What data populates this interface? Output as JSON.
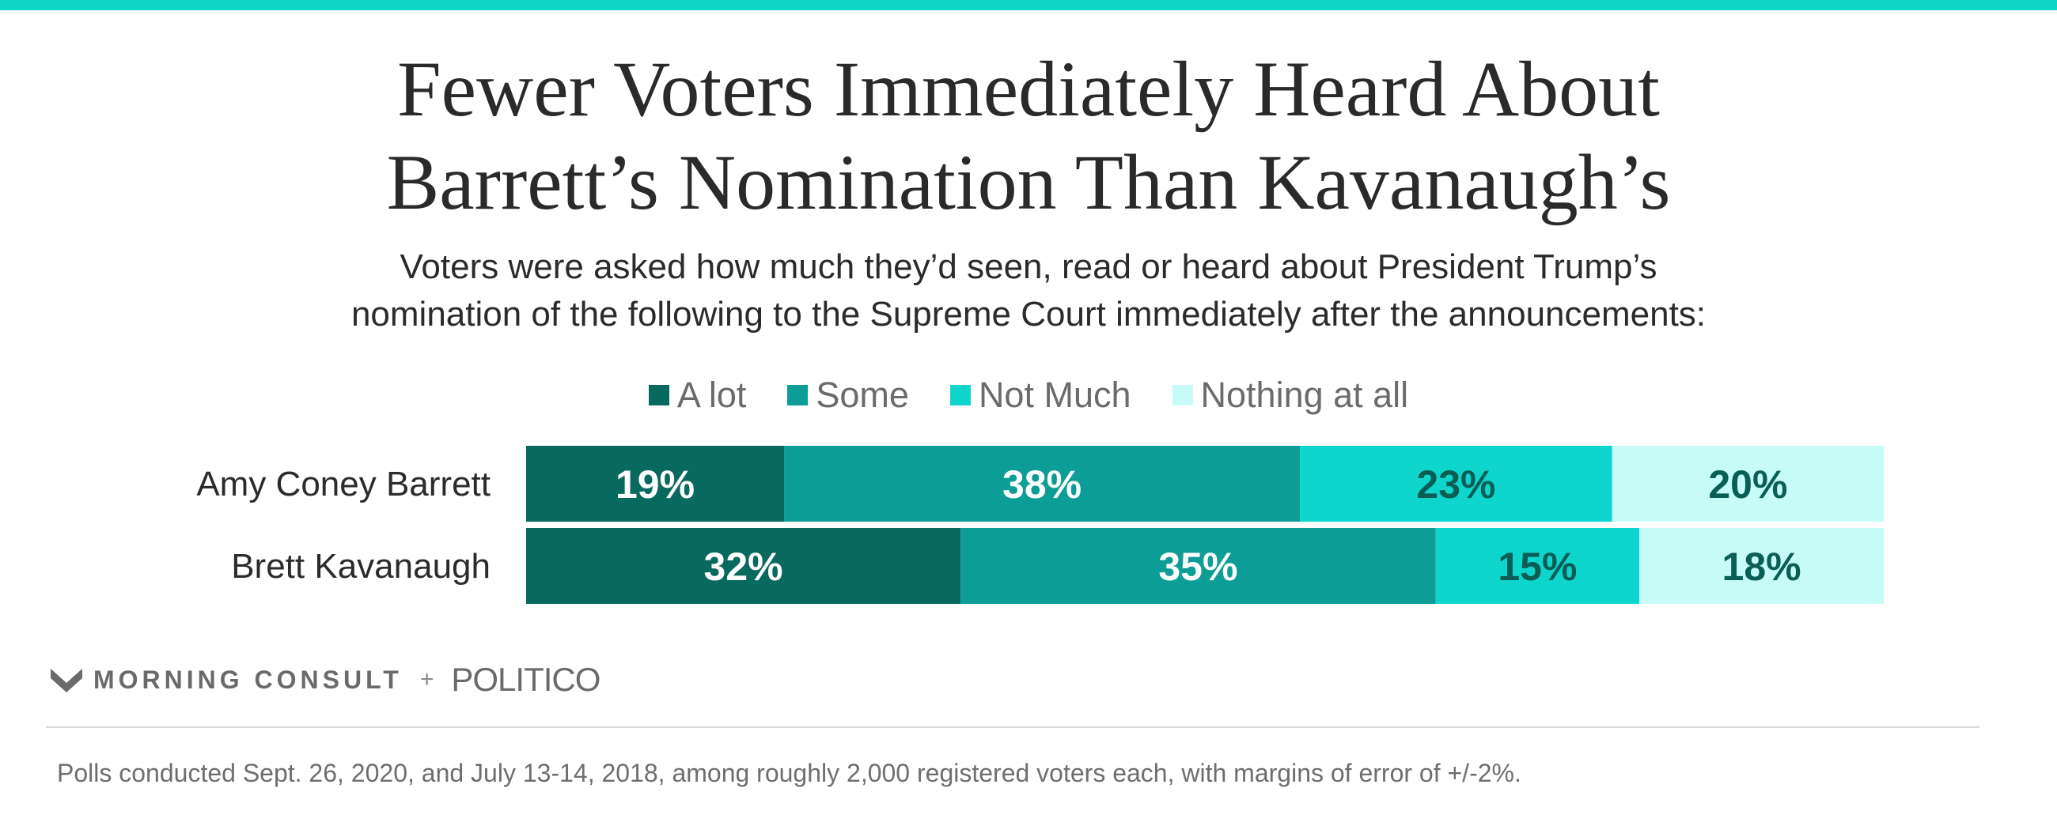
{
  "colors": {
    "top_bar": "#0fd6c8",
    "a_lot": "#08695f",
    "some": "#0c9e96",
    "not_much": "#0fd6cc",
    "nothing_at_all": "#c6fbf8",
    "label_light": "#ffffff",
    "label_dark": "#0a5e56"
  },
  "header": {
    "title_line1": "Fewer Voters Immediately Heard About",
    "title_line2": "Barrett’s Nomination Than Kavanaugh’s",
    "subtitle_line1": "Voters were asked how much they’d seen, read or heard about President Trump’s",
    "subtitle_line2": "nomination of the following to the Supreme Court immediately after the announcements:"
  },
  "legend": [
    {
      "label": "A lot",
      "color": "#08695f"
    },
    {
      "label": "Some",
      "color": "#0c9e96"
    },
    {
      "label": "Not Much",
      "color": "#0fd6cc"
    },
    {
      "label": "Nothing at all",
      "color": "#c6fbf8"
    }
  ],
  "chart_data": {
    "type": "bar",
    "orientation": "horizontal",
    "stacked": true,
    "categories": [
      "Amy Coney Barrett",
      "Brett Kavanaugh"
    ],
    "series": [
      {
        "name": "A lot",
        "values": [
          19,
          32
        ],
        "labels": [
          "19%",
          "32%"
        ]
      },
      {
        "name": "Some",
        "values": [
          38,
          35
        ],
        "labels": [
          "38%",
          "35%"
        ]
      },
      {
        "name": "Not Much",
        "values": [
          23,
          15
        ],
        "labels": [
          "23%",
          "15%"
        ]
      },
      {
        "name": "Nothing at all",
        "values": [
          20,
          18
        ],
        "labels": [
          "20%",
          "18%"
        ]
      }
    ],
    "xlim": [
      0,
      100
    ],
    "grid": false,
    "legend_position": "top-center"
  },
  "branding": {
    "morning_consult": "MORNING CONSULT",
    "plus": "+",
    "politico": "POLITICO"
  },
  "footnote": "Polls conducted Sept. 26, 2020, and July 13-14, 2018, among roughly 2,000 registered voters each, with margins of error of +/-2%."
}
